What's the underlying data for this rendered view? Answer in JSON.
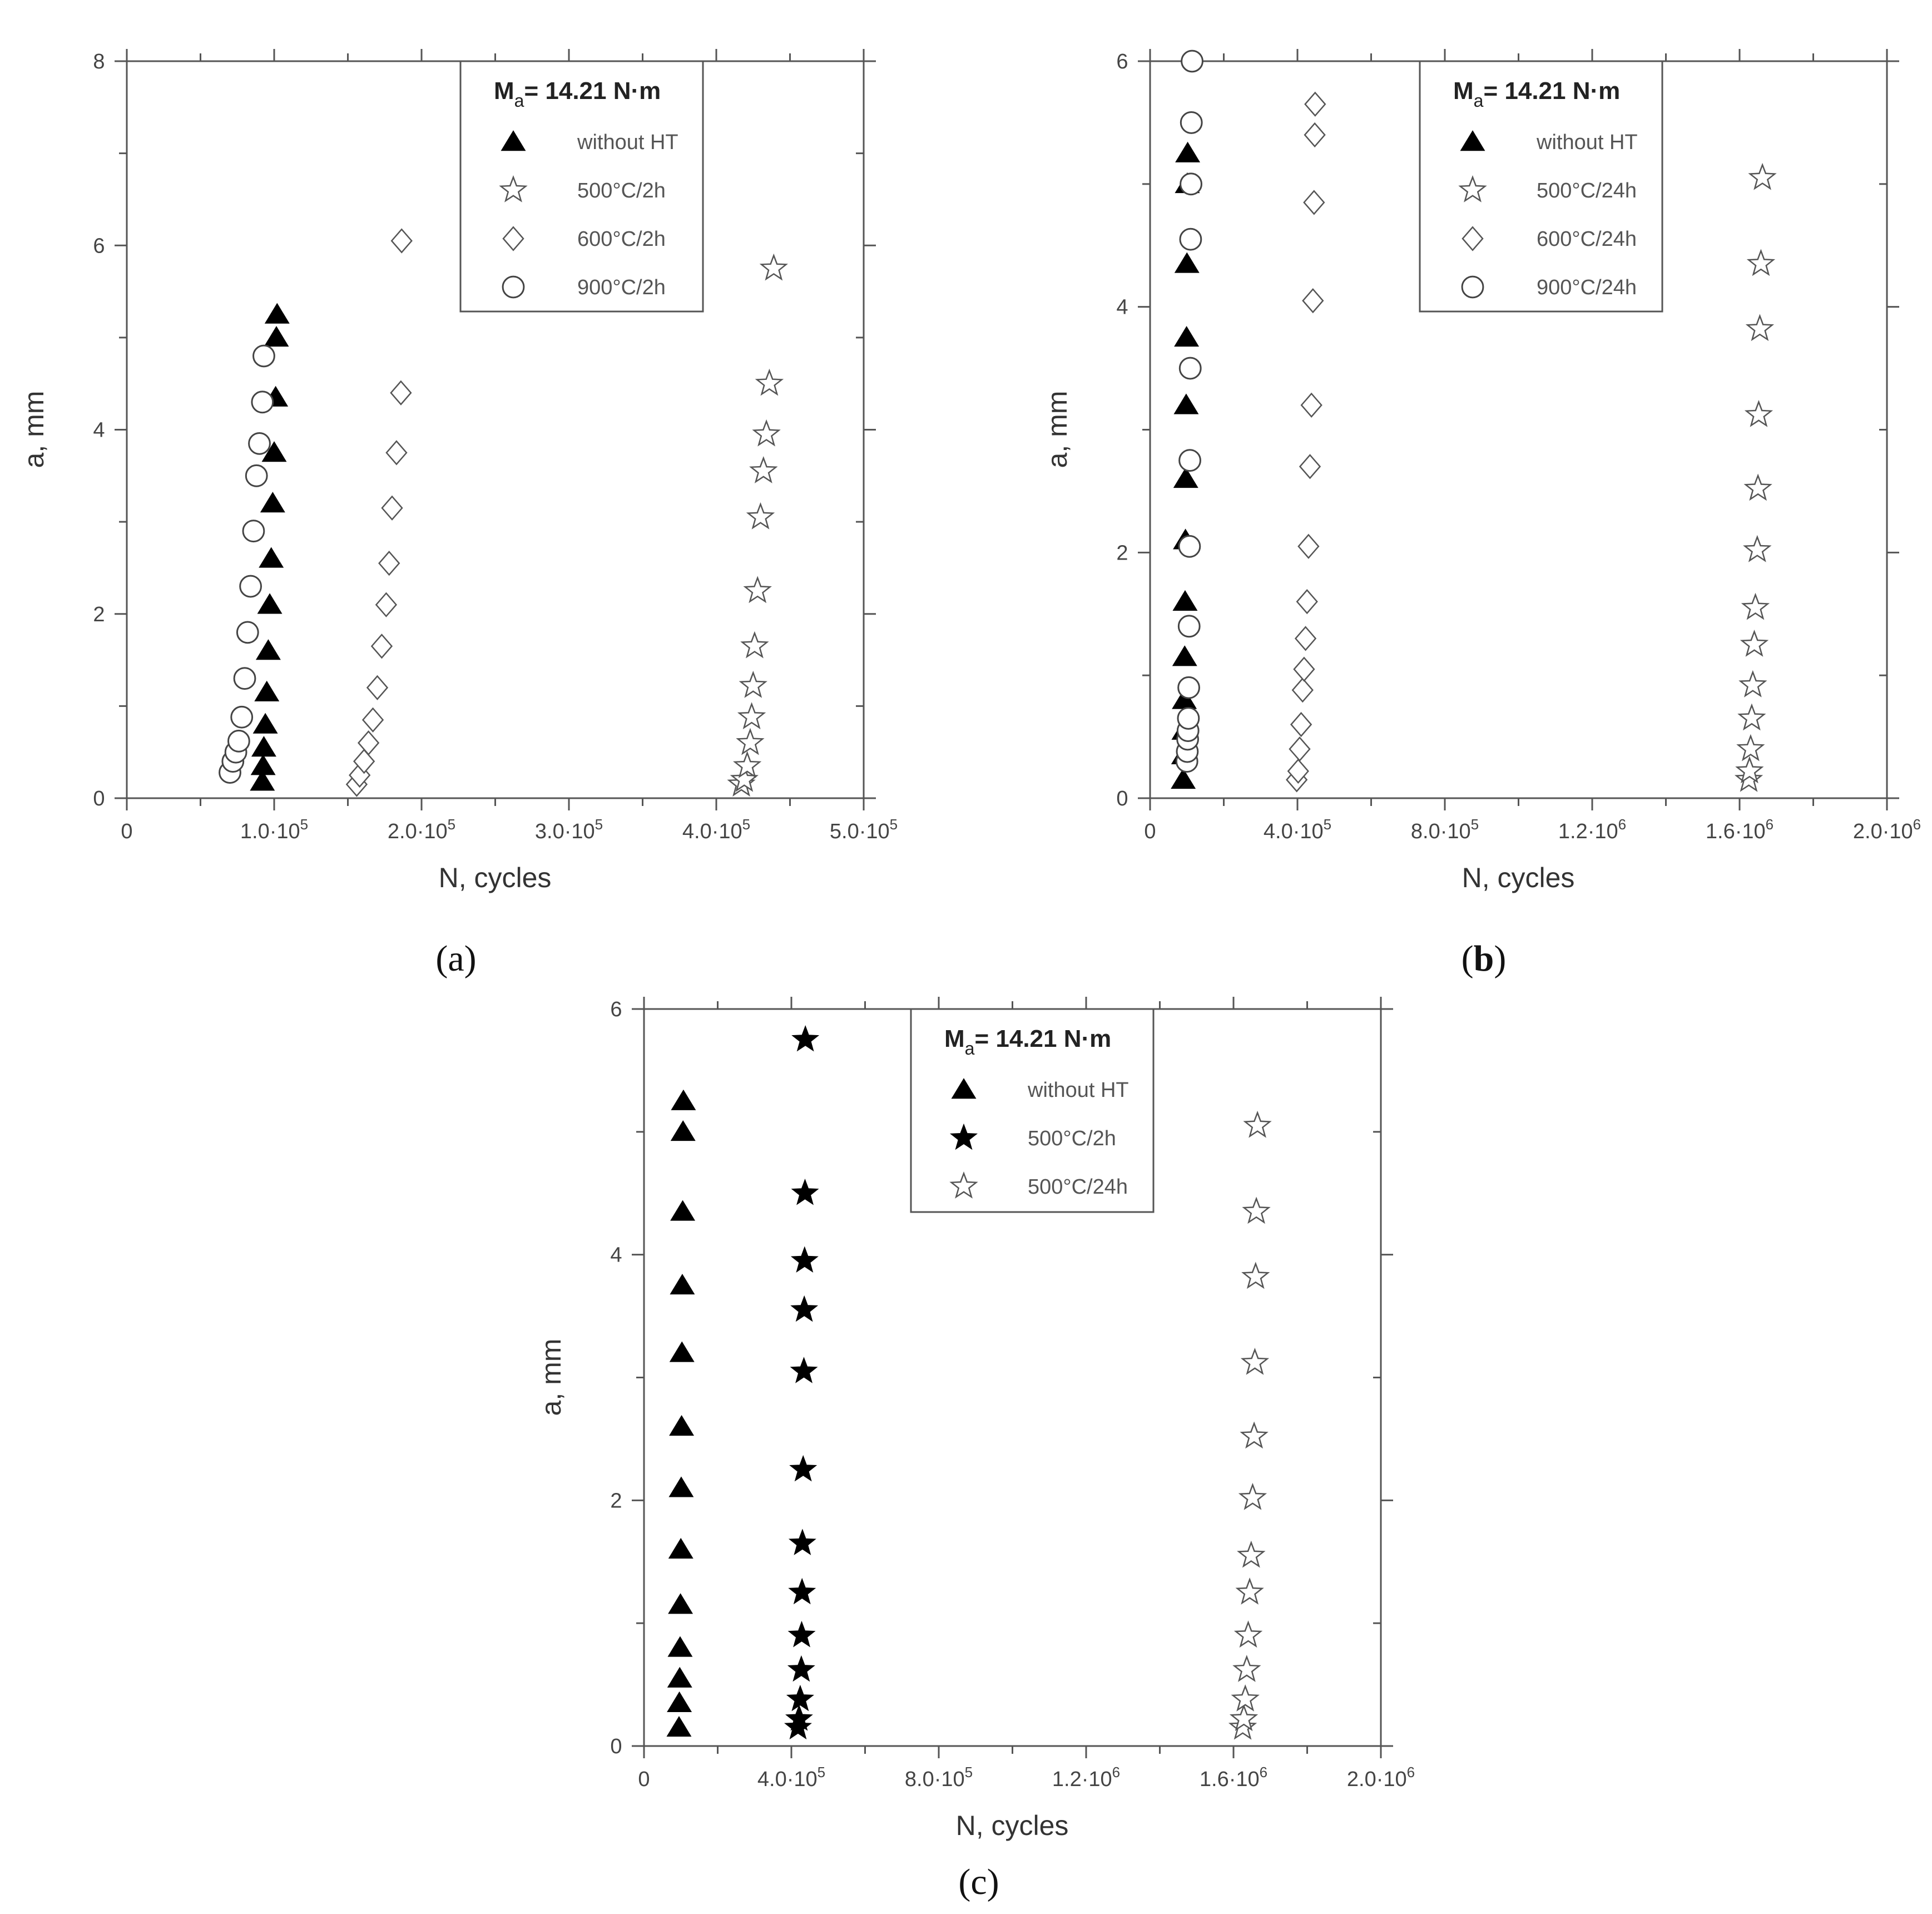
{
  "chart_data": [
    {
      "id": "a",
      "type": "scatter",
      "caption": "(a)",
      "caption_bold": false,
      "xlabel": "N, cycles",
      "ylabel": "a, mm",
      "xlim": [
        0,
        500000
      ],
      "ylim": [
        0,
        8
      ],
      "x_ticks": [
        {
          "v": 0,
          "t": "0",
          "e": ""
        },
        {
          "v": 100000,
          "t": "1.0·10",
          "e": "5"
        },
        {
          "v": 200000,
          "t": "2.0·10",
          "e": "5"
        },
        {
          "v": 300000,
          "t": "3.0·10",
          "e": "5"
        },
        {
          "v": 400000,
          "t": "4.0·10",
          "e": "5"
        },
        {
          "v": 500000,
          "t": "5.0·10",
          "e": "5"
        }
      ],
      "y_ticks": [
        {
          "v": 0,
          "t": "0"
        },
        {
          "v": 2,
          "t": "2"
        },
        {
          "v": 4,
          "t": "4"
        },
        {
          "v": 6,
          "t": "6"
        },
        {
          "v": 8,
          "t": "8"
        }
      ],
      "legend_title": {
        "main": "M",
        "sub": "a",
        "rest": "= 14.21 N·m"
      },
      "legend": [
        {
          "label": "without HT",
          "marker": "triangle-filled"
        },
        {
          "label": "500°C/2h",
          "marker": "star-open"
        },
        {
          "label": "600°C/2h",
          "marker": "diamond-open"
        },
        {
          "label": "900°C/2h",
          "marker": "circle-open"
        }
      ],
      "series": [
        {
          "name": "without HT",
          "marker": "triangle-filled",
          "x": [
            92000,
            92500,
            93000,
            94000,
            95000,
            96000,
            97000,
            98000,
            99000,
            100000,
            101000,
            101500,
            102000
          ],
          "y": [
            0.18,
            0.35,
            0.55,
            0.8,
            1.15,
            1.6,
            2.1,
            2.6,
            3.2,
            3.75,
            4.35,
            5.0,
            5.25
          ]
        },
        {
          "name": "500°C/2h",
          "marker": "star-open",
          "x": [
            417000,
            419000,
            421000,
            423000,
            424000,
            425000,
            426000,
            428000,
            430000,
            432000,
            434000,
            436000,
            439000
          ],
          "y": [
            0.15,
            0.2,
            0.35,
            0.6,
            0.88,
            1.22,
            1.65,
            2.25,
            3.05,
            3.55,
            3.95,
            4.5,
            5.75
          ]
        },
        {
          "name": "600°C/2h",
          "marker": "diamond-open",
          "x": [
            156000,
            158000,
            161000,
            164000,
            167000,
            170000,
            173000,
            176000,
            178000,
            180000,
            183000,
            186000
          ],
          "y": [
            0.15,
            0.25,
            0.4,
            0.6,
            0.85,
            1.2,
            1.65,
            2.1,
            2.55,
            3.15,
            3.75,
            4.4
          ]
        },
        {
          "name": "900°C/2h",
          "marker": "circle-open",
          "x": [
            70000,
            72000,
            74000,
            76000,
            78000,
            80000,
            82000,
            84000,
            86000,
            88000,
            90000,
            92000,
            93000
          ],
          "y": [
            0.28,
            0.4,
            0.5,
            0.62,
            0.88,
            1.3,
            1.8,
            2.3,
            2.9,
            3.5,
            3.85,
            4.3,
            4.8
          ]
        }
      ],
      "extra_points": [
        {
          "series": "600°C/2h",
          "x": 186500,
          "y": 6.05
        }
      ]
    },
    {
      "id": "b",
      "type": "scatter",
      "caption": "b",
      "caption_bold": true,
      "xlabel": "N, cycles",
      "ylabel": "a, mm",
      "xlim": [
        0,
        2000000
      ],
      "ylim": [
        0,
        6
      ],
      "x_ticks": [
        {
          "v": 0,
          "t": "0",
          "e": ""
        },
        {
          "v": 400000,
          "t": "4.0·10",
          "e": "5"
        },
        {
          "v": 800000,
          "t": "8.0·10",
          "e": "5"
        },
        {
          "v": 1200000,
          "t": "1.2·10",
          "e": "6"
        },
        {
          "v": 1600000,
          "t": "1.6·10",
          "e": "6"
        },
        {
          "v": 2000000,
          "t": "2.0·10",
          "e": "6"
        }
      ],
      "y_ticks": [
        {
          "v": 0,
          "t": "0"
        },
        {
          "v": 2,
          "t": "2"
        },
        {
          "v": 4,
          "t": "4"
        },
        {
          "v": 6,
          "t": "6"
        }
      ],
      "legend_title": {
        "main": "M",
        "sub": "a",
        "rest": "= 14.21 N·m"
      },
      "legend": [
        {
          "label": "without HT",
          "marker": "triangle-filled"
        },
        {
          "label": "500°C/24h",
          "marker": "star-open"
        },
        {
          "label": "600°C/24h",
          "marker": "diamond-open"
        },
        {
          "label": "900°C/24h",
          "marker": "circle-open"
        }
      ],
      "series": [
        {
          "name": "without HT",
          "marker": "triangle-filled",
          "x": [
            90000,
            91000,
            92000,
            93000,
            94000,
            95000,
            96000,
            97000,
            98000,
            99000,
            100000,
            101000,
            102000
          ],
          "y": [
            0.15,
            0.35,
            0.55,
            0.8,
            1.15,
            1.6,
            2.1,
            2.6,
            3.2,
            3.75,
            4.35,
            5.0,
            5.25
          ]
        },
        {
          "name": "500°C/24h",
          "marker": "star-open",
          "x": [
            1625000,
            1627000,
            1630000,
            1633000,
            1636000,
            1640000,
            1643000,
            1648000,
            1650000,
            1652000,
            1655000,
            1658000,
            1662000
          ],
          "y": [
            0.15,
            0.22,
            0.4,
            0.65,
            0.92,
            1.25,
            1.55,
            2.02,
            2.52,
            3.12,
            3.82,
            4.35,
            5.05
          ]
        },
        {
          "name": "600°C/24h",
          "marker": "diamond-open",
          "x": [
            398000,
            402000,
            406000,
            410000,
            414000,
            418000,
            422000,
            426000,
            430000,
            434000,
            438000,
            442000,
            445000,
            447000
          ],
          "y": [
            0.15,
            0.22,
            0.4,
            0.6,
            0.88,
            1.05,
            1.3,
            1.6,
            2.05,
            2.7,
            3.2,
            4.05,
            4.85,
            5.4
          ]
        },
        {
          "name": "900°C/24h",
          "marker": "circle-open",
          "x": [
            100000,
            101000,
            102000,
            103000,
            104000,
            105000,
            106000,
            107000,
            108000,
            109000,
            110000,
            111000,
            112000,
            114000
          ],
          "y": [
            0.3,
            0.38,
            0.48,
            0.55,
            0.65,
            0.9,
            1.4,
            2.05,
            2.75,
            3.5,
            4.55,
            5.0,
            5.5,
            6.0
          ]
        }
      ],
      "extra_points": [
        {
          "series": "600°C/24h",
          "x": 448000,
          "y": 5.65
        }
      ]
    },
    {
      "id": "c",
      "type": "scatter",
      "caption": "(c)",
      "caption_bold": false,
      "xlabel": "N, cycles",
      "ylabel": "a, mm",
      "xlim": [
        0,
        2000000
      ],
      "ylim": [
        0,
        6
      ],
      "x_ticks": [
        {
          "v": 0,
          "t": "0",
          "e": ""
        },
        {
          "v": 400000,
          "t": "4.0·10",
          "e": "5"
        },
        {
          "v": 800000,
          "t": "8.0·10",
          "e": "5"
        },
        {
          "v": 1200000,
          "t": "1.2·10",
          "e": "6"
        },
        {
          "v": 1600000,
          "t": "1.6·10",
          "e": "6"
        },
        {
          "v": 2000000,
          "t": "2.0·10",
          "e": "6"
        }
      ],
      "y_ticks": [
        {
          "v": 0,
          "t": "0"
        },
        {
          "v": 2,
          "t": "2"
        },
        {
          "v": 4,
          "t": "4"
        },
        {
          "v": 6,
          "t": "6"
        }
      ],
      "legend_title": {
        "main": "M",
        "sub": "a",
        "rest": "= 14.21 N·m"
      },
      "legend": [
        {
          "label": "without HT",
          "marker": "triangle-filled"
        },
        {
          "label": "500°C/2h",
          "marker": "star-filled"
        },
        {
          "label": "500°C/24h",
          "marker": "star-open"
        }
      ],
      "series": [
        {
          "name": "without HT",
          "marker": "triangle-filled",
          "x": [
            95000,
            96000,
            97000,
            98000,
            99000,
            100000,
            101000,
            102000,
            103000,
            104000,
            105000,
            106000,
            107000
          ],
          "y": [
            0.15,
            0.35,
            0.55,
            0.8,
            1.15,
            1.6,
            2.1,
            2.6,
            3.2,
            3.75,
            4.35,
            5.0,
            5.25
          ]
        },
        {
          "name": "500°C/2h",
          "marker": "star-filled",
          "x": [
            418000,
            421000,
            424000,
            427000,
            428000,
            429000,
            430000,
            432000,
            434000,
            435000,
            436000,
            437000,
            438000
          ],
          "y": [
            0.15,
            0.22,
            0.38,
            0.62,
            0.9,
            1.25,
            1.65,
            2.25,
            3.05,
            3.55,
            3.95,
            4.5,
            5.75
          ]
        },
        {
          "name": "500°C/24h",
          "marker": "star-open",
          "x": [
            1625000,
            1628000,
            1632000,
            1636000,
            1640000,
            1644000,
            1648000,
            1652000,
            1656000,
            1658000,
            1660000,
            1662000,
            1665000
          ],
          "y": [
            0.15,
            0.22,
            0.38,
            0.62,
            0.9,
            1.25,
            1.55,
            2.02,
            2.52,
            3.12,
            3.82,
            4.35,
            5.05
          ]
        }
      ],
      "extra_points": []
    }
  ]
}
